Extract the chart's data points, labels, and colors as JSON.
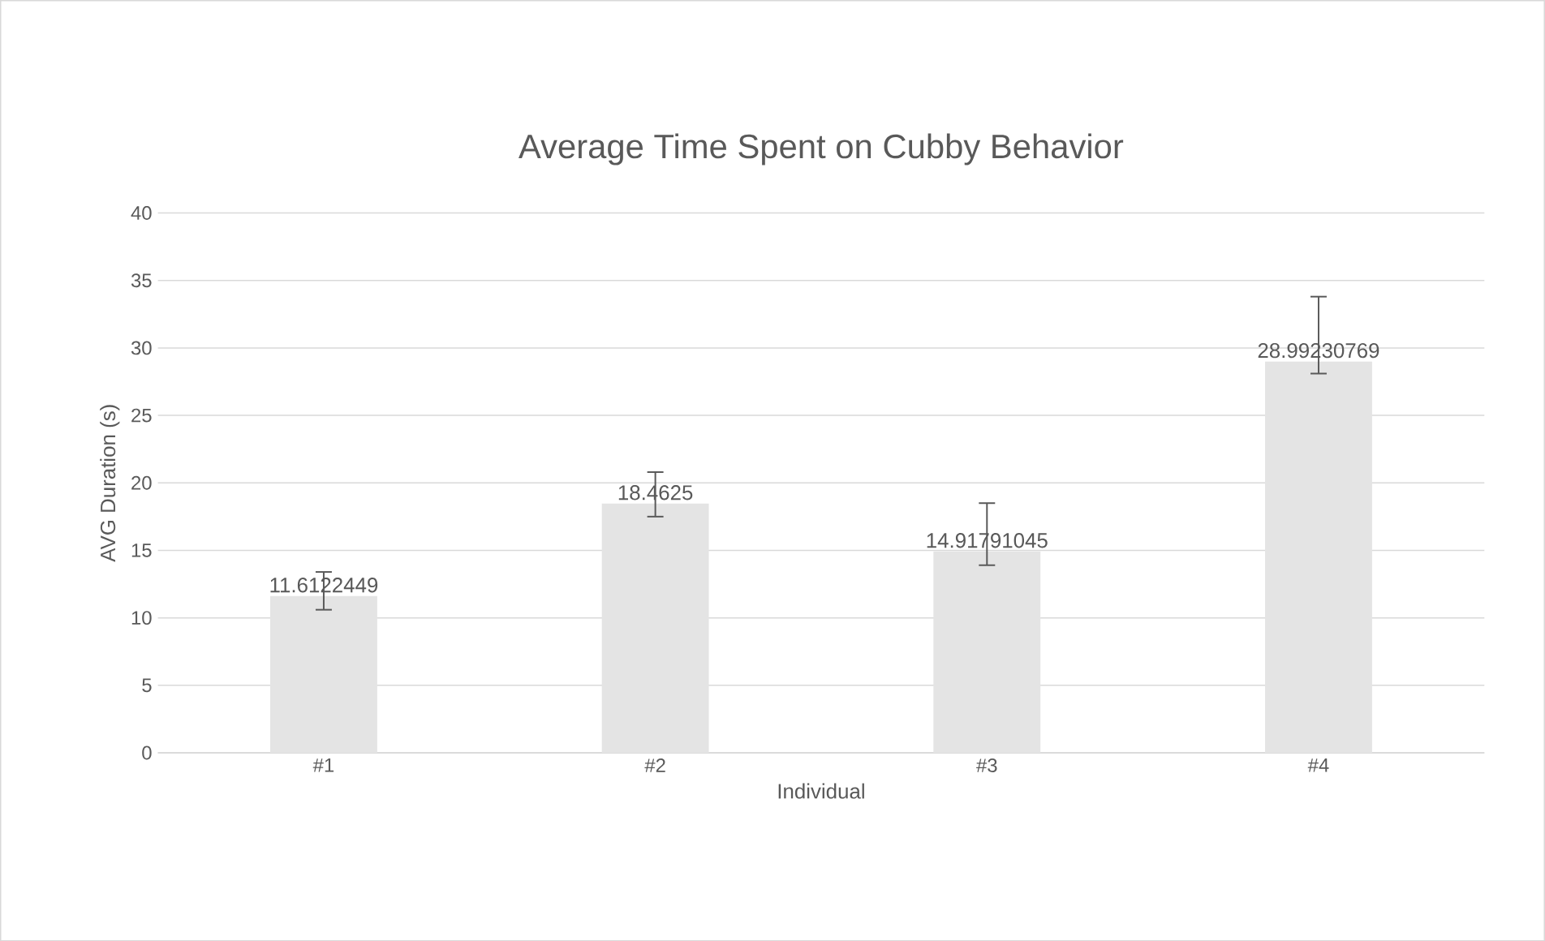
{
  "chart_data": {
    "type": "bar",
    "title": "Average Time Spent on Cubby Behavior",
    "xlabel": "Individual",
    "ylabel": "AVG Duration (s)",
    "categories": [
      "#1",
      "#2",
      "#3",
      "#4"
    ],
    "values": [
      11.6122449,
      18.4625,
      14.91791045,
      28.99230769
    ],
    "errors": [
      [
        10.6,
        13.4
      ],
      [
        17.5,
        20.8
      ],
      [
        13.9,
        18.5
      ],
      [
        28.1,
        33.8
      ]
    ],
    "color": "#e4e4e4",
    "ylim": [
      0,
      40
    ],
    "yticks": [
      0,
      5,
      10,
      15,
      20,
      25,
      30,
      35,
      40
    ],
    "grid": "y",
    "data_labels": true
  }
}
